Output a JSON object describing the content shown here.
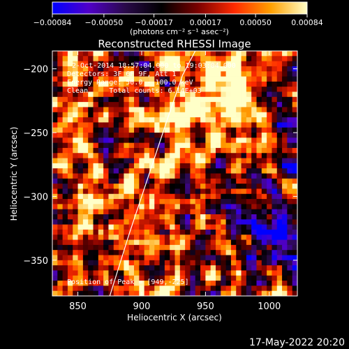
{
  "chart_data": {
    "type": "heatmap",
    "title": "Reconstructed RHESSI Image",
    "xlabel": "Heliocentric X (arcsec)",
    "ylabel": "Heliocentric Y (arcsec)",
    "xlim": [
      830,
      1022
    ],
    "ylim": [
      -378,
      -186
    ],
    "x_ticks": [
      850,
      900,
      950,
      1000
    ],
    "x_tick_labels": [
      "850",
      "900",
      "950",
      "1000"
    ],
    "y_ticks": [
      -200,
      -250,
      -300,
      -350
    ],
    "y_tick_labels": [
      "−200",
      "−250",
      "−300",
      "−350"
    ],
    "grid": false,
    "colorbar": {
      "range": [
        -0.00084,
        0.00084
      ],
      "ticks": [
        -0.00084,
        -0.0005,
        -0.00017,
        0.00017,
        0.0005,
        0.00084
      ],
      "tick_labels": [
        "−0.00084",
        "−0.00050",
        "−0.00017",
        "0.00017",
        "0.00050",
        "0.00084"
      ],
      "units_label": "(photons cm⁻² s⁻¹ asec⁻²)",
      "colors": [
        "#0000ff",
        "#5000c8",
        "#2a0a4a",
        "#000000",
        "#7a0000",
        "#ff2a00",
        "#ffa000",
        "#ffffc8"
      ]
    },
    "annotations": {
      "time_range": "2-Oct-2014 18:57:04.000 to 19:03:04.000",
      "detectors": "Detectors: 3F 6F 9F, Att 1",
      "energy_range": "Energy Range: 50.0 - 100.0 keV",
      "clean_counts": "Clean     Total counts: 6.14E+03",
      "peak_position": "Position of Peak = [949,-225]"
    },
    "peak": {
      "x": 949,
      "y": -225
    },
    "limb_curve": {
      "x": [
        875,
        890,
        905,
        920,
        932,
        942
      ],
      "y": [
        -378,
        -330,
        -285,
        -240,
        -205,
        -186
      ]
    },
    "field_description": "noisy reconstruction, brightest near the peak and the upper-center area, negative (purple/blue) patches lower right"
  },
  "footer": {
    "date": "17-May-2022 20:20"
  }
}
